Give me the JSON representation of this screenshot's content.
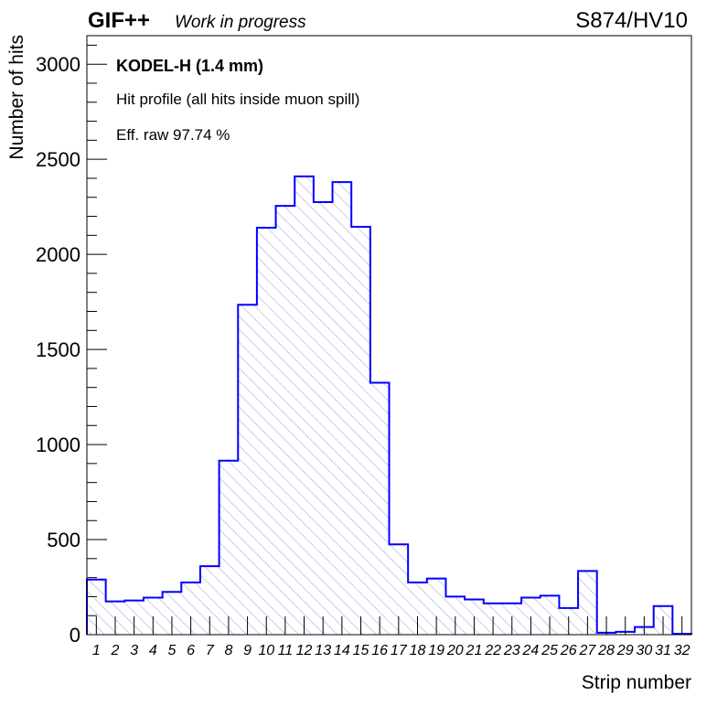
{
  "header": {
    "experiment": "GIF++",
    "status": "Work in progress",
    "run_label": "S874/HV10"
  },
  "legend": {
    "detector": "KODEL-H (1.4 mm)",
    "description": "Hit profile (all hits inside muon spill)",
    "efficiency": "Eff. raw 97.74 %"
  },
  "colors": {
    "histogram_line": "#0000ff",
    "hatch": "#9a9ae6",
    "frame": "#000000",
    "background": "#ffffff"
  },
  "chart_data": {
    "type": "bar",
    "histogram": true,
    "xlabel": "Strip number",
    "ylabel": "Number of hits",
    "xlim": [
      0.5,
      32.5
    ],
    "ylim": [
      0,
      3150
    ],
    "y_ticks": [
      0,
      500,
      1000,
      1500,
      2000,
      2500,
      3000
    ],
    "y_minor_step": 100,
    "categories": [
      "1",
      "2",
      "3",
      "4",
      "5",
      "6",
      "7",
      "8",
      "9",
      "10",
      "11",
      "12",
      "13",
      "14",
      "15",
      "16",
      "17",
      "18",
      "19",
      "20",
      "21",
      "22",
      "23",
      "24",
      "25",
      "26",
      "27",
      "28",
      "29",
      "30",
      "31",
      "32"
    ],
    "values": [
      290,
      175,
      180,
      195,
      225,
      275,
      360,
      915,
      1735,
      2140,
      2255,
      2410,
      2275,
      2380,
      2145,
      1325,
      475,
      275,
      295,
      200,
      185,
      165,
      165,
      195,
      205,
      140,
      335,
      10,
      15,
      40,
      150,
      5
    ],
    "grid": false,
    "fill": "hatched"
  }
}
